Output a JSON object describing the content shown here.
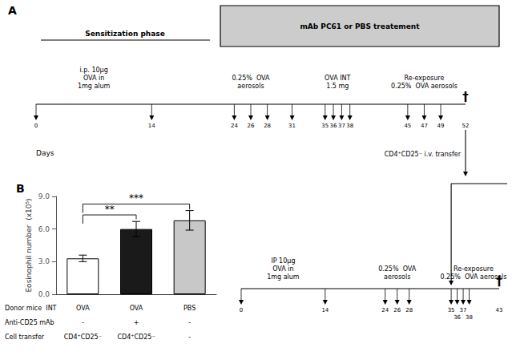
{
  "chart_data": {
    "type": "bar",
    "categories": [
      null,
      null,
      null
    ],
    "values": [
      3.3,
      6.0,
      6.8
    ],
    "errors": [
      0.3,
      0.7,
      0.9
    ],
    "colors": [
      "white",
      "#1a1a1a",
      "#c8c8c8"
    ],
    "ylabel": "Eosinophil number  (x10⁵)",
    "ylim": [
      0,
      9.0
    ],
    "yticks": [
      {
        "value": 0,
        "label": "0.0"
      },
      {
        "value": 3,
        "label": "3.0"
      },
      {
        "value": 6,
        "label": "6.0"
      },
      {
        "value": 9,
        "label": "9.0"
      }
    ],
    "grid": false,
    "significance": [
      {
        "from": 0,
        "to": 1,
        "y": 7.3,
        "ends": [
          6.5,
          6.9
        ],
        "label": "**"
      },
      {
        "from": 0,
        "to": 2,
        "y": 8.3,
        "ends": [
          7.5,
          7.8
        ],
        "label": "***"
      }
    ],
    "table": {
      "rows": [
        "Donor mice  INT",
        "Anti-CD25 mAb",
        "Cell transfer"
      ],
      "cells": [
        [
          "OVA",
          "OVA",
          "PBS"
        ],
        [
          "-",
          "+",
          "-"
        ],
        [
          "CD4⁺CD25⁻",
          "CD4⁺CD25⁻",
          "-"
        ]
      ]
    },
    "panel_labels": [
      "A",
      "B"
    ],
    "diagram": {
      "sensitization": "Sensitization phase",
      "treatment": "mAb PC61 or PBS treatement",
      "days_label": "Days",
      "end_mark": "†",
      "transfer": "CD4⁺CD25⁻ i.v. transfer",
      "timelines": [
        {
          "days": [
            0,
            14,
            24,
            26,
            28,
            31,
            35,
            36,
            37,
            38,
            45,
            47,
            49,
            52
          ],
          "arrows": [
            0,
            14,
            24,
            26,
            28,
            31,
            35,
            36,
            37,
            38,
            45,
            47,
            49
          ],
          "notes": [
            {
              "text": "i.p. 10μg\nOVA in\n1mg alum",
              "from": 0,
              "to": 14
            },
            {
              "text": "0.25%  OVA\naerosols",
              "from": 24,
              "to": 28
            },
            {
              "text": "OVA INT\n1.5 mg",
              "from": 35,
              "to": 38
            },
            {
              "text": "Re-exposure\n0.25%  OVA aerosols",
              "from": 45,
              "to": 49
            }
          ]
        },
        {
          "days": [
            0,
            14,
            24,
            26,
            28,
            35,
            36,
            37,
            38,
            43
          ],
          "arrows": [
            0,
            14,
            24,
            26,
            28,
            35,
            36,
            37,
            38
          ],
          "notes": [
            {
              "text": "IP 10μg\nOVA in\n1mg alum",
              "from": 0,
              "to": 14
            },
            {
              "text": "0.25%  OVA\naerosols",
              "from": 24,
              "to": 28
            },
            {
              "text": "Re-exposure\n0.25%  OVA aerosols",
              "from": 35,
              "to": 43
            }
          ]
        }
      ]
    }
  }
}
